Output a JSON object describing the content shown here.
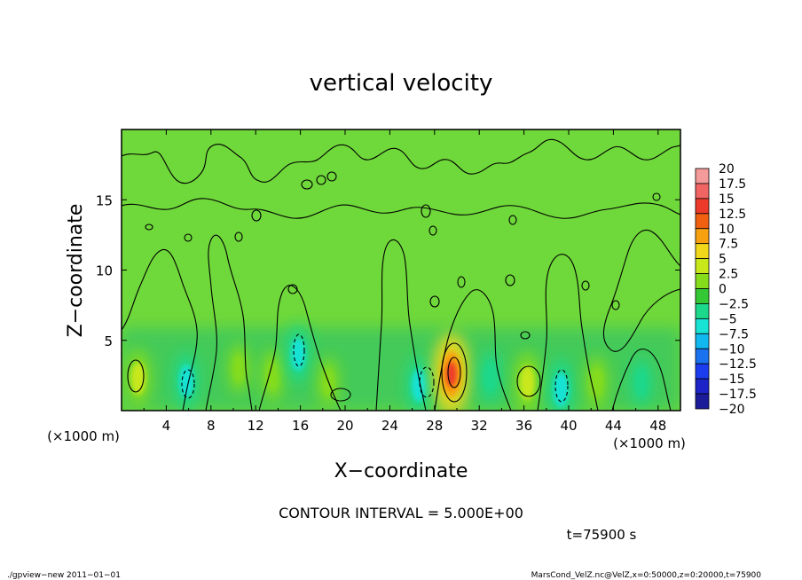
{
  "chart_data": {
    "type": "heatmap",
    "title": "vertical velocity",
    "xlabel": "X−coordinate",
    "ylabel": "Z−coordinate",
    "x_unit_label": "(×1000 m)",
    "y_unit_label": "(×1000 m)",
    "xlim": [
      0,
      50
    ],
    "ylim": [
      0,
      20
    ],
    "x_ticks": [
      4,
      8,
      12,
      16,
      20,
      24,
      28,
      32,
      36,
      40,
      44,
      48
    ],
    "x_tick_labels": [
      "4",
      "8",
      "12",
      "16",
      "20",
      "24",
      "28",
      "32",
      "36",
      "40",
      "44",
      "48"
    ],
    "y_ticks": [
      5,
      10,
      15
    ],
    "y_tick_labels": [
      "5",
      "10",
      "15"
    ],
    "contour_interval_text": "CONTOUR INTERVAL = 5.000E+00",
    "time_text": "t=75900 s",
    "colorbar": {
      "levels": [
        20,
        17.5,
        15,
        12.5,
        10,
        7.5,
        5,
        2.5,
        0,
        -2.5,
        -5,
        -7.5,
        -10,
        -12.5,
        -15,
        -17.5,
        -20
      ],
      "labels": [
        "20",
        "17.5",
        "15",
        "12.5",
        "10",
        "7.5",
        "5",
        "2.5",
        "0",
        "−2.5",
        "−5",
        "−7.5",
        "−10",
        "−12.5",
        "−15",
        "−17.5",
        "−20"
      ],
      "colors": [
        "#f49a9a",
        "#f06464",
        "#ec3a2a",
        "#f06010",
        "#f7a010",
        "#f2d81a",
        "#c8e81a",
        "#84dc1a",
        "#34c834",
        "#1cd88a",
        "#18e2d4",
        "#10b8ef",
        "#1a72ef",
        "#1c3cef",
        "#1c24c8",
        "#1c1c9a",
        "#5c1a9a"
      ]
    },
    "features": [
      {
        "x": 1.5,
        "z": 2.3,
        "value": 6,
        "kind": "updraft"
      },
      {
        "x": 5.8,
        "z": 2.1,
        "value": -6,
        "kind": "downdraft"
      },
      {
        "x": 10.5,
        "z": 3,
        "value": 3,
        "kind": "updraft"
      },
      {
        "x": 13.5,
        "z": 2.5,
        "value": 4,
        "kind": "updraft"
      },
      {
        "x": 15.8,
        "z": 4,
        "value": -6,
        "kind": "downdraft"
      },
      {
        "x": 18.5,
        "z": 2,
        "value": 3,
        "kind": "updraft"
      },
      {
        "x": 26.6,
        "z": 1.8,
        "value": -6,
        "kind": "downdraft"
      },
      {
        "x": 29.5,
        "z": 2.6,
        "value": 14,
        "kind": "updraft"
      },
      {
        "x": 33,
        "z": 2.4,
        "value": -4,
        "kind": "downdraft"
      },
      {
        "x": 36.3,
        "z": 2.0,
        "value": 7,
        "kind": "updraft"
      },
      {
        "x": 39.3,
        "z": 1.5,
        "value": -7,
        "kind": "downdraft"
      },
      {
        "x": 42.5,
        "z": 2.0,
        "value": 4,
        "kind": "updraft"
      },
      {
        "x": 46.5,
        "z": 2.0,
        "value": -3,
        "kind": "downdraft"
      }
    ]
  },
  "footer": {
    "left_text": "./gpview−new   2011−01−01",
    "right_text": "MarsCond_VelZ.nc@VelZ,x=0:50000,z=0:20000,t=75900"
  }
}
